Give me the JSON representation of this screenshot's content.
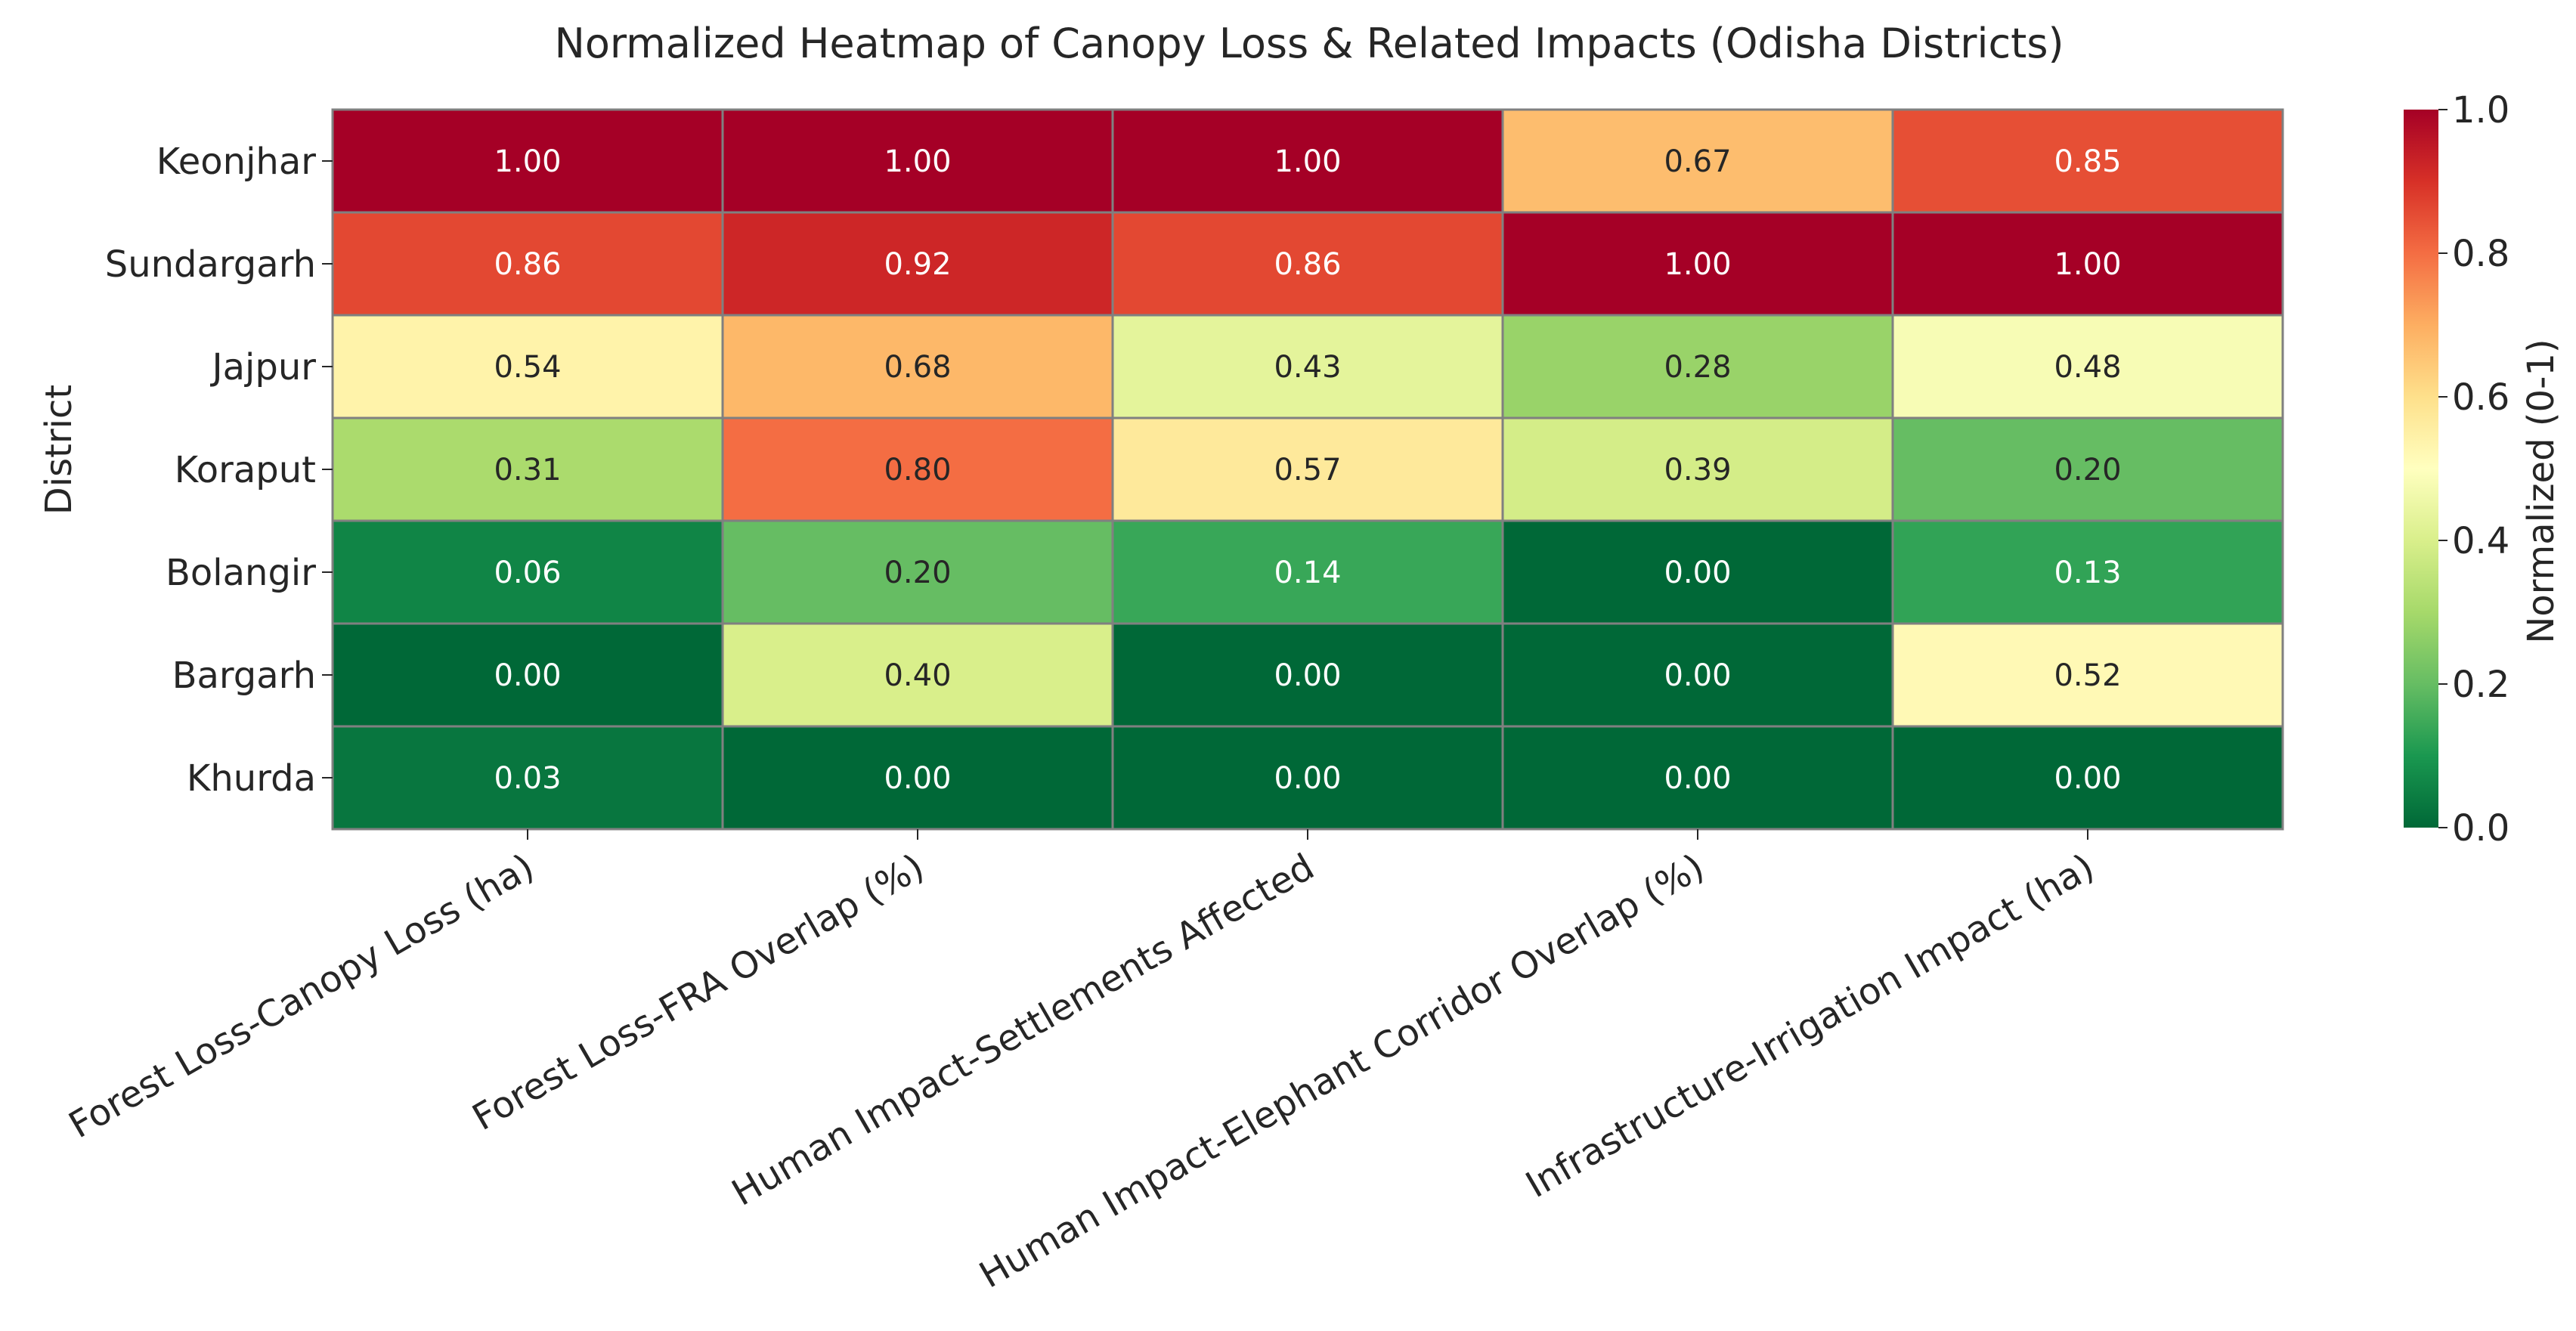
{
  "chart_data": {
    "type": "heatmap",
    "title": "Normalized Heatmap of Canopy Loss & Related Impacts (Odisha Districts)",
    "xlabel": "",
    "ylabel": "District",
    "rows": [
      "Keonjhar",
      "Sundargarh",
      "Jajpur",
      "Koraput",
      "Bolangir",
      "Bargarh",
      "Khurda"
    ],
    "columns": [
      "Forest Loss-Canopy Loss (ha)",
      "Forest Loss-FRA Overlap (%)",
      "Human Impact-Settlements Affected",
      "Human Impact-Elephant Corridor Overlap (%)",
      "Infrastructure-Irrigation Impact (ha)"
    ],
    "values": [
      [
        1.0,
        1.0,
        1.0,
        0.67,
        0.85
      ],
      [
        0.86,
        0.92,
        0.86,
        1.0,
        1.0
      ],
      [
        0.54,
        0.68,
        0.43,
        0.28,
        0.48
      ],
      [
        0.31,
        0.8,
        0.57,
        0.39,
        0.2
      ],
      [
        0.06,
        0.2,
        0.14,
        0.0,
        0.13
      ],
      [
        0.0,
        0.4,
        0.0,
        0.0,
        0.52
      ],
      [
        0.03,
        0.0,
        0.0,
        0.0,
        0.0
      ]
    ],
    "value_format": "0.00",
    "colormap": "RdYlGn_r",
    "colorbar": {
      "label": "Normalized (0-1)",
      "range": [
        0.0,
        1.0
      ],
      "ticks": [
        "0.0",
        "0.2",
        "0.4",
        "0.6",
        "0.8",
        "1.0"
      ]
    },
    "grid_color": "#808080"
  }
}
